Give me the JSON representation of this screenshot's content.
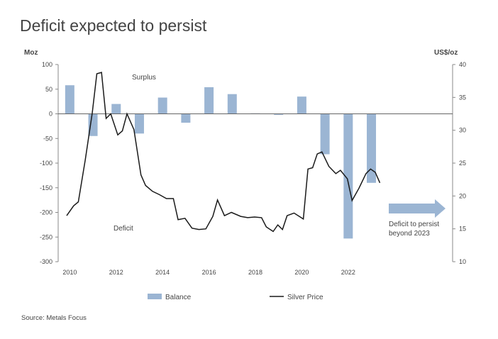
{
  "chart_data": {
    "type": "bar+line",
    "title": "Deficit expected to persist",
    "source": "Source: Metals Focus",
    "left_axis": {
      "label": "Moz",
      "ylim": [
        -300,
        100
      ],
      "ticks": [
        "100",
        "50",
        "0",
        "-50",
        "-100",
        "-150",
        "-200",
        "-250",
        "-300"
      ],
      "tick_values": [
        100,
        50,
        0,
        -50,
        -100,
        -150,
        -200,
        -250,
        -300
      ]
    },
    "right_axis": {
      "label": "US$/oz",
      "ylim": [
        10,
        40
      ],
      "ticks": [
        "40",
        "35",
        "30",
        "25",
        "20",
        "15",
        "10"
      ],
      "tick_values": [
        40,
        35,
        30,
        25,
        20,
        15,
        10
      ]
    },
    "x_ticks": [
      "2010",
      "2012",
      "2014",
      "2016",
      "2018",
      "2020",
      "2022"
    ],
    "x_range": [
      2010,
      2026
    ],
    "grid": false,
    "legend_placement": "bottom",
    "series": [
      {
        "name": "Balance",
        "type": "bar",
        "color": "#9bb5d3",
        "categories": [
          2010,
          2011,
          2012,
          2013,
          2014,
          2015,
          2016,
          2017,
          2018,
          2019,
          2020,
          2021,
          2022,
          2023
        ],
        "values": [
          58,
          -45,
          20,
          -40,
          33,
          -18,
          54,
          40,
          1,
          -2,
          35,
          -82,
          -253,
          -140
        ]
      },
      {
        "name": "Silver Price",
        "type": "line",
        "color": "#1a1a1a",
        "x": [
          2010.0,
          2010.3,
          2010.5,
          2010.8,
          2011.1,
          2011.3,
          2011.5,
          2011.7,
          2011.9,
          2012.2,
          2012.4,
          2012.6,
          2012.9,
          2013.2,
          2013.4,
          2013.7,
          2014.0,
          2014.3,
          2014.6,
          2014.8,
          2015.1,
          2015.4,
          2015.7,
          2016.0,
          2016.3,
          2016.5,
          2016.8,
          2017.1,
          2017.5,
          2017.8,
          2018.1,
          2018.4,
          2018.6,
          2018.9,
          2019.1,
          2019.3,
          2019.5,
          2019.8,
          2020.2,
          2020.4,
          2020.6,
          2020.8,
          2021.0,
          2021.3,
          2021.6,
          2021.8,
          2022.1,
          2022.3,
          2022.6,
          2022.9,
          2023.1,
          2023.3,
          2023.5
        ],
        "values": [
          17.0,
          18.5,
          19.1,
          25.5,
          32.6,
          38.6,
          38.8,
          31.8,
          32.5,
          29.3,
          29.9,
          32.5,
          30.1,
          23.2,
          21.6,
          20.7,
          20.2,
          19.6,
          19.6,
          16.4,
          16.6,
          15.1,
          14.9,
          15.0,
          16.9,
          19.4,
          17.0,
          17.5,
          16.9,
          16.7,
          16.8,
          16.7,
          15.3,
          14.6,
          15.6,
          14.9,
          17.0,
          17.4,
          16.5,
          24.1,
          24.3,
          26.4,
          26.7,
          24.5,
          23.4,
          23.9,
          22.6,
          19.3,
          21.2,
          23.4,
          24.1,
          23.6,
          22.0
        ]
      }
    ],
    "annotations": {
      "surplus": "Surplus",
      "deficit": "Deficit",
      "arrow_text_1": "Deficit to persist",
      "arrow_text_2": "beyond 2023"
    }
  }
}
